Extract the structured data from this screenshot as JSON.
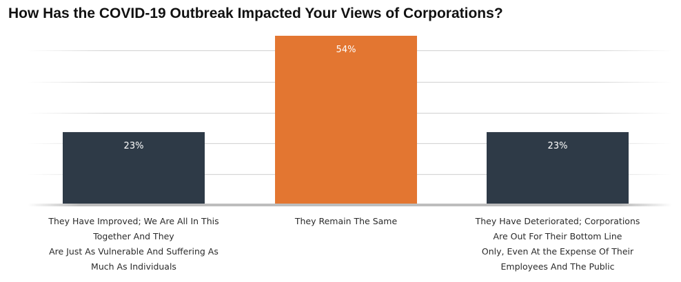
{
  "chart_data": {
    "type": "bar",
    "title": "How Has the COVID-19 Outbreak Impacted Your Views of Corporations?",
    "categories": [
      [
        "They Have Improved; We Are All In This",
        "Together And They",
        "Are Just As Vulnerable And Suffering As",
        "Much As Individuals"
      ],
      [
        "They Remain The Same"
      ],
      [
        "They Have Deteriorated; Corporations",
        "Are Out For Their Bottom Line",
        "Only, Even At the Expense Of Their",
        "Employees And The Public"
      ]
    ],
    "values": [
      23,
      54,
      23
    ],
    "data_labels": [
      "23%",
      "54%",
      "23%"
    ],
    "colors": [
      "#2e3a47",
      "#e37631",
      "#2e3a47"
    ],
    "ylim": [
      0,
      54
    ],
    "grid": true,
    "xlabel": "",
    "ylabel": ""
  }
}
